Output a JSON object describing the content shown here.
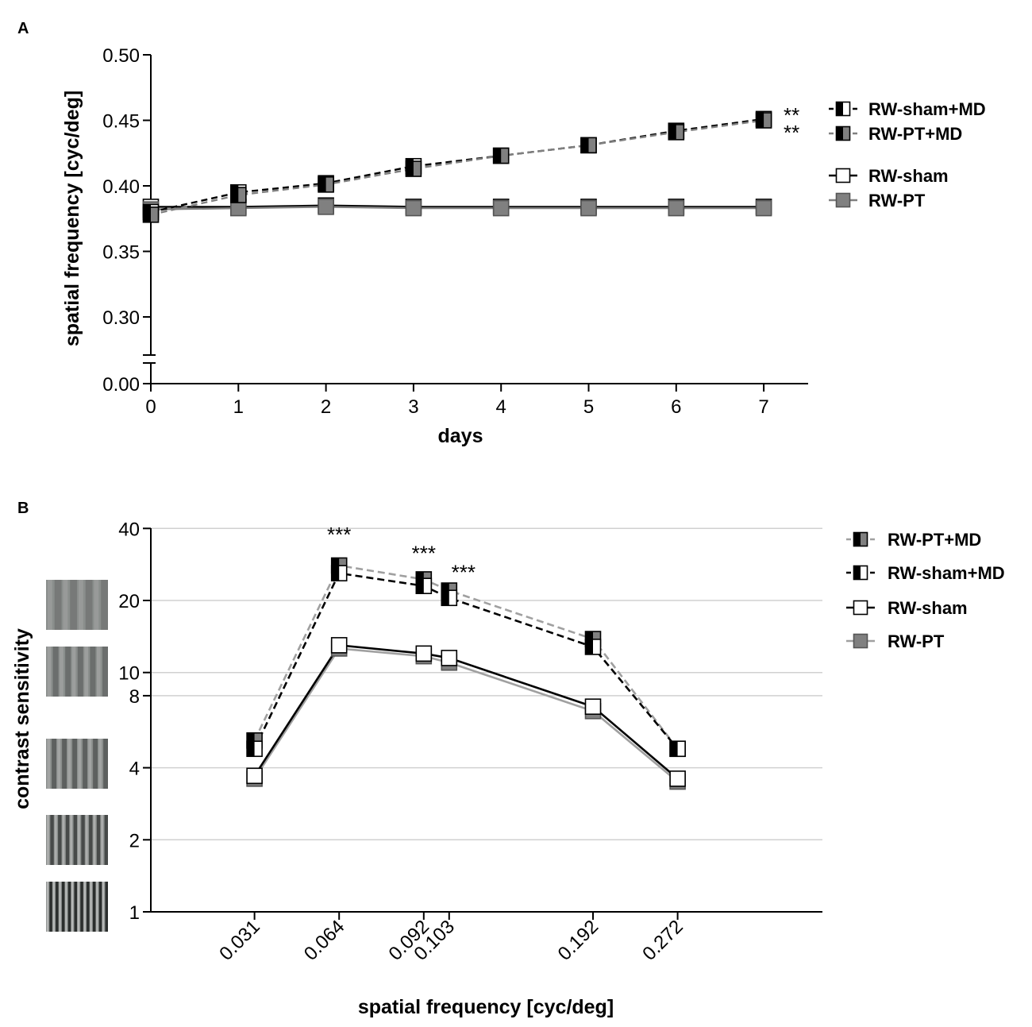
{
  "panels": {
    "a": "A",
    "b": "B"
  },
  "colors": {
    "black": "#000000",
    "gray": "#808080",
    "lightgray": "#a0a0a0",
    "white": "#ffffff",
    "grid": "#d0d0d0"
  },
  "chart_data": [
    {
      "type": "line",
      "panel": "A",
      "title": "",
      "xlabel": "days",
      "ylabel": "spatial frequency [cyc/deg]",
      "x": [
        0,
        1,
        2,
        3,
        4,
        5,
        6,
        7
      ],
      "xlim": [
        0,
        7.5
      ],
      "ylim": [
        0.0,
        0.5
      ],
      "axis_break": [
        0.0,
        0.28
      ],
      "y_ticks": [
        "0.50",
        "0.45",
        "0.40",
        "0.35",
        "0.30",
        "0.00"
      ],
      "x_ticks": [
        "0",
        "1",
        "2",
        "3",
        "4",
        "5",
        "6",
        "7"
      ],
      "grid": false,
      "legend_position": "right",
      "series": [
        {
          "name": "RW-sham+MD",
          "marker": "half-black-white",
          "line": "dashed",
          "line_color": "#000000",
          "values": [
            0.38,
            0.395,
            0.402,
            0.415,
            0.423,
            0.431,
            0.442,
            0.451
          ]
        },
        {
          "name": "RW-PT+MD",
          "marker": "half-black-gray",
          "line": "dashed",
          "line_color": "#808080",
          "values": [
            0.378,
            0.393,
            0.401,
            0.413,
            0.423,
            0.431,
            0.441,
            0.45
          ]
        },
        {
          "name": "RW-sham",
          "marker": "white",
          "line": "solid",
          "line_color": "#000000",
          "values": [
            0.384,
            0.384,
            0.385,
            0.384,
            0.384,
            0.384,
            0.384,
            0.384
          ]
        },
        {
          "name": "RW-PT",
          "marker": "gray",
          "line": "solid",
          "line_color": "#808080",
          "values": [
            0.382,
            0.383,
            0.384,
            0.383,
            0.383,
            0.383,
            0.383,
            0.383
          ]
        }
      ],
      "annotations": [
        {
          "text": "**",
          "series": "RW-sham+MD",
          "x": 7
        },
        {
          "text": "**",
          "series": "RW-PT+MD",
          "x": 7
        }
      ]
    },
    {
      "type": "line",
      "panel": "B",
      "title": "",
      "xlabel": "spatial frequency [cyc/deg]",
      "ylabel": "contrast sensitivity",
      "yscale": "log2",
      "ylim": [
        1,
        40
      ],
      "y_ticks": [
        40,
        20,
        10,
        8,
        4,
        2,
        1
      ],
      "x_positions": [
        1,
        2,
        3,
        3.3,
        5,
        6
      ],
      "xlim": [
        0,
        6.7
      ],
      "x_ticks": [
        "0.031",
        "0.064",
        "0.092",
        "0.103",
        "0.192",
        "0.272"
      ],
      "grid": true,
      "legend_position": "right",
      "series": [
        {
          "name": "RW-PT+MD",
          "marker": "half-black-gray",
          "line": "dashed",
          "line_color": "#a0a0a0",
          "values": [
            5.2,
            28.0,
            24.5,
            22.0,
            13.8,
            4.8
          ]
        },
        {
          "name": "RW-sham+MD",
          "marker": "half-black-white",
          "line": "dashed",
          "line_color": "#000000",
          "values": [
            4.8,
            26.0,
            23.0,
            20.5,
            12.8,
            4.8
          ]
        },
        {
          "name": "RW-sham",
          "marker": "white",
          "line": "solid",
          "line_color": "#000000",
          "values": [
            3.7,
            13.0,
            12.0,
            11.5,
            7.2,
            3.6
          ]
        },
        {
          "name": "RW-PT",
          "marker": "gray",
          "line": "solid",
          "line_color": "#a0a0a0",
          "values": [
            3.6,
            12.6,
            11.7,
            11.0,
            6.9,
            3.5
          ]
        }
      ],
      "annotations": [
        {
          "text": "***",
          "x_index": 1
        },
        {
          "text": "***",
          "x_index": 2
        },
        {
          "text": "***",
          "x_index": 3
        }
      ]
    }
  ]
}
